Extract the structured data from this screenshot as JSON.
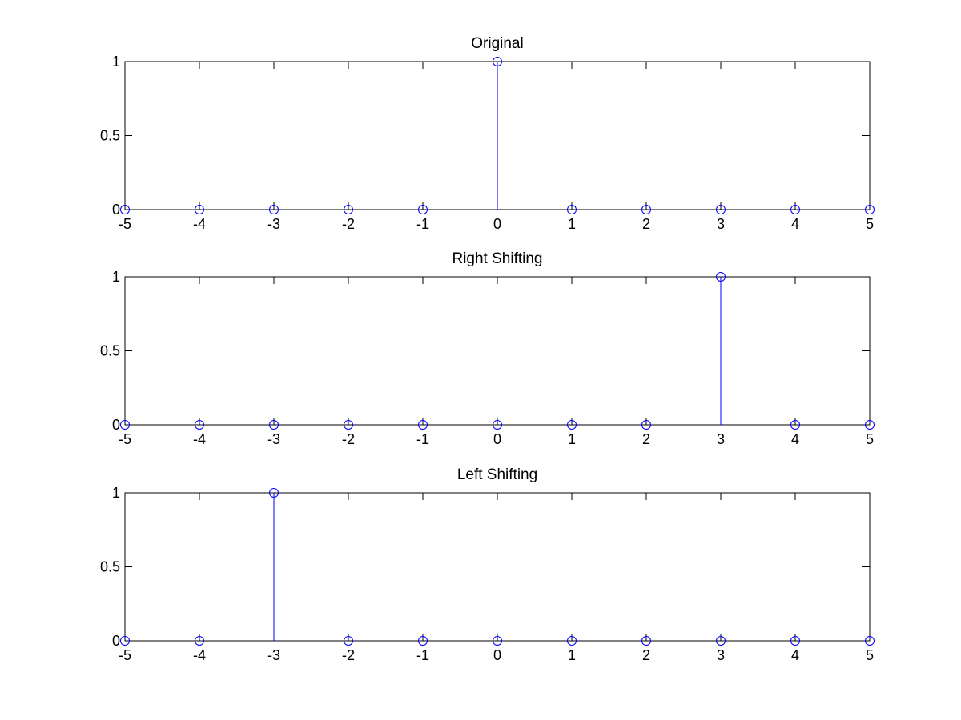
{
  "figure": {
    "background": "#ffffff",
    "stem_color": "#0000ff",
    "axes_color": "#000000"
  },
  "chart_data": [
    {
      "type": "stem",
      "title": "Original",
      "x": [
        -5,
        -4,
        -3,
        -2,
        -1,
        0,
        1,
        2,
        3,
        4,
        5
      ],
      "series": [
        {
          "values": [
            0,
            0,
            0,
            0,
            0,
            1,
            0,
            0,
            0,
            0,
            0
          ]
        }
      ],
      "xlim": [
        -5,
        5
      ],
      "ylim": [
        0,
        1
      ],
      "xticks": [
        "-5",
        "-4",
        "-3",
        "-2",
        "-1",
        "0",
        "1",
        "2",
        "3",
        "4",
        "5"
      ],
      "yticks": [
        "0",
        "0.5",
        "1"
      ],
      "marker": "circle",
      "grid": false
    },
    {
      "type": "stem",
      "title": "Right Shifting",
      "x": [
        -5,
        -4,
        -3,
        -2,
        -1,
        0,
        1,
        2,
        3,
        4,
        5
      ],
      "series": [
        {
          "values": [
            0,
            0,
            0,
            0,
            0,
            0,
            0,
            0,
            1,
            0,
            0
          ]
        }
      ],
      "xlim": [
        -5,
        5
      ],
      "ylim": [
        0,
        1
      ],
      "xticks": [
        "-5",
        "-4",
        "-3",
        "-2",
        "-1",
        "0",
        "1",
        "2",
        "3",
        "4",
        "5"
      ],
      "yticks": [
        "0",
        "0.5",
        "1"
      ],
      "marker": "circle",
      "grid": false
    },
    {
      "type": "stem",
      "title": "Left Shifting",
      "x": [
        -5,
        -4,
        -3,
        -2,
        -1,
        0,
        1,
        2,
        3,
        4,
        5
      ],
      "series": [
        {
          "values": [
            0,
            0,
            1,
            0,
            0,
            0,
            0,
            0,
            0,
            0,
            0
          ]
        }
      ],
      "xlim": [
        -5,
        5
      ],
      "ylim": [
        0,
        1
      ],
      "xticks": [
        "-5",
        "-4",
        "-3",
        "-2",
        "-1",
        "0",
        "1",
        "2",
        "3",
        "4",
        "5"
      ],
      "yticks": [
        "0",
        "0.5",
        "1"
      ],
      "marker": "circle",
      "grid": false
    }
  ]
}
